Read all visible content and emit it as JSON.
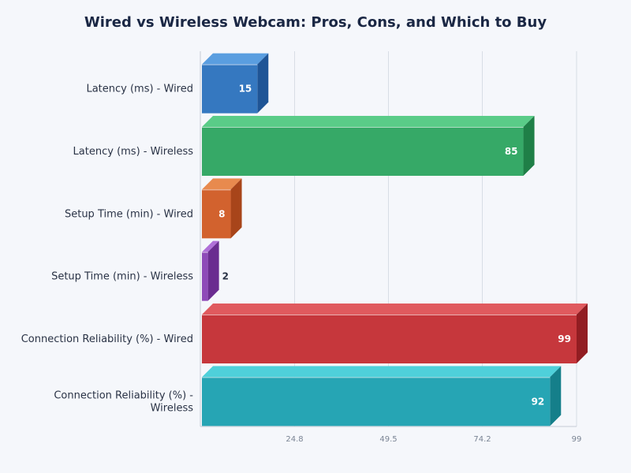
{
  "chart_data": {
    "type": "bar",
    "orientation": "horizontal",
    "style": "3d",
    "title": "Wired vs Wireless Webcam: Pros, Cons, and Which to Buy",
    "xlabel": "",
    "ylabel": "",
    "xlim": [
      0,
      99
    ],
    "xticks": [
      "24.8",
      "49.5",
      "74.2",
      "99"
    ],
    "grid": true,
    "categories": [
      "Latency (ms) - Wired",
      "Latency (ms) - Wireless",
      "Setup Time (min) - Wired",
      "Setup Time (min) - Wireless",
      "Connection Reliability (%) - Wired",
      "Connection Reliability (%) - Wireless"
    ],
    "values": [
      15,
      85,
      8,
      2,
      99,
      92
    ],
    "colors": [
      {
        "front": "#3578c0",
        "top": "#5a9ee0",
        "side": "#1f5596"
      },
      {
        "front": "#36a967",
        "top": "#5acc88",
        "side": "#1f7f47"
      },
      {
        "front": "#d2622e",
        "top": "#e88a4e",
        "side": "#a8451a"
      },
      {
        "front": "#8e4ab8",
        "top": "#b070d8",
        "side": "#6a2c90"
      },
      {
        "front": "#c6373c",
        "top": "#e05a5e",
        "side": "#921d22"
      },
      {
        "front": "#26a5b4",
        "top": "#4fd0da",
        "side": "#157f8a"
      }
    ]
  }
}
